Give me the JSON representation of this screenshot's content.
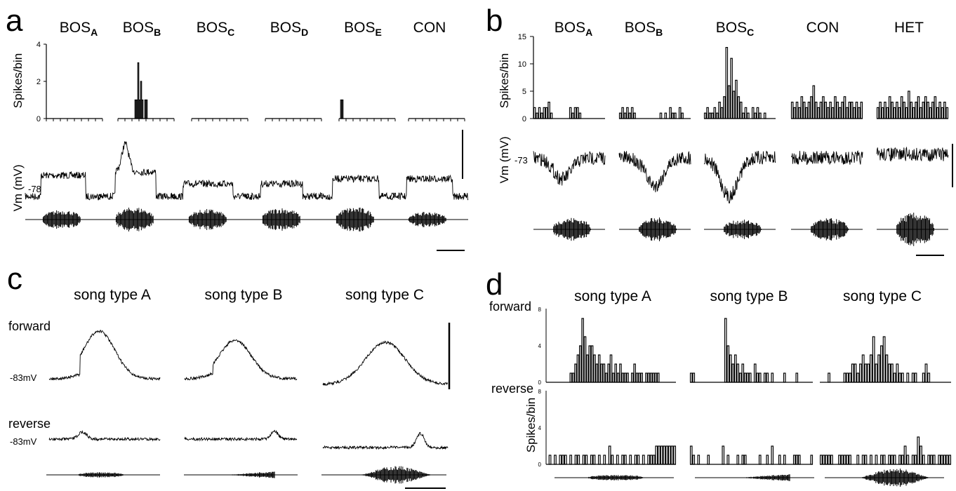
{
  "panels": [
    {
      "letter": "a",
      "columns": [
        {
          "base": "BOS",
          "sub": "A"
        },
        {
          "base": "BOS",
          "sub": "B"
        },
        {
          "base": "BOS",
          "sub": "C"
        },
        {
          "base": "BOS",
          "sub": "D"
        },
        {
          "base": "BOS",
          "sub": "E"
        },
        {
          "base": "CON",
          "sub": ""
        }
      ],
      "ylabel_hist": "Spikes/bin",
      "yticks_hist": [
        "0",
        "2",
        "4"
      ],
      "ylabel_trace": "Vm (mV)",
      "vm_value": "-78"
    },
    {
      "letter": "b",
      "columns": [
        {
          "base": "BOS",
          "sub": "A"
        },
        {
          "base": "BOS",
          "sub": "B"
        },
        {
          "base": "BOS",
          "sub": "C"
        },
        {
          "base": "CON",
          "sub": ""
        },
        {
          "base": "HET",
          "sub": ""
        }
      ],
      "ylabel_hist": "Spikes/bin",
      "yticks_hist": [
        "0",
        "5",
        "10",
        "15"
      ],
      "ylabel_trace": "Vm (mV)",
      "vm_value": "-73"
    },
    {
      "letter": "c",
      "columns": [
        "song type A",
        "song type B",
        "song type C"
      ],
      "row_forward": "forward",
      "row_reverse": "reverse",
      "vm_forward": "-83mV",
      "vm_reverse": "-83mV"
    },
    {
      "letter": "d",
      "columns": [
        "song type A",
        "song type B",
        "song type C"
      ],
      "row_forward": "forward",
      "row_reverse": "reverse",
      "ylabel": "Spikes/bin",
      "yticks": [
        "0",
        "4",
        "8"
      ]
    }
  ],
  "chart_data": [
    {
      "panel": "a",
      "type": "bar",
      "ylabel": "Spikes/bin",
      "ylim": [
        0,
        4
      ],
      "series": [
        {
          "values": [
            0,
            0,
            0,
            0,
            0,
            0,
            0,
            0,
            0,
            0,
            0,
            0,
            0,
            0,
            0,
            0,
            0,
            0,
            0,
            0,
            0,
            0,
            0,
            0,
            0,
            0,
            0,
            0,
            0,
            0,
            0,
            0,
            0,
            0,
            0,
            0,
            0,
            0,
            0,
            0
          ]
        },
        {
          "values": [
            0,
            0,
            0,
            0,
            0,
            0,
            0,
            0,
            0,
            0,
            0,
            0,
            1,
            1,
            3,
            1,
            2,
            1,
            0,
            1,
            1,
            0,
            0,
            0,
            0,
            0,
            0,
            0,
            0,
            0,
            0,
            0,
            0,
            0,
            0,
            0,
            0,
            0,
            0,
            0
          ]
        },
        {
          "values": [
            0,
            0,
            0,
            0,
            0,
            0,
            0,
            0,
            0,
            0,
            0,
            0,
            0,
            0,
            0,
            0,
            0,
            0,
            0,
            0,
            0,
            0,
            0,
            0,
            0,
            0,
            0,
            0,
            0,
            0,
            0,
            0,
            0,
            0,
            0,
            0,
            0,
            0,
            0,
            0
          ]
        },
        {
          "values": [
            0,
            0,
            0,
            0,
            0,
            0,
            0,
            0,
            0,
            0,
            0,
            0,
            0,
            0,
            0,
            0,
            0,
            0,
            0,
            0,
            0,
            0,
            0,
            0,
            0,
            0,
            0,
            0,
            0,
            0,
            0,
            0,
            0,
            0,
            0,
            0,
            0,
            0,
            0,
            0
          ]
        },
        {
          "values": [
            0,
            1,
            1,
            0,
            0,
            0,
            0,
            0,
            0,
            0,
            0,
            0,
            0,
            0,
            0,
            0,
            0,
            0,
            0,
            0,
            0,
            0,
            0,
            0,
            0,
            0,
            0,
            0,
            0,
            0,
            0,
            0,
            0,
            0,
            0,
            0,
            0,
            0,
            0,
            0
          ]
        },
        {
          "values": [
            0,
            0,
            0,
            0,
            0,
            0,
            0,
            0,
            0,
            0,
            0,
            0,
            0,
            0,
            0,
            0,
            0,
            0,
            0,
            0,
            0,
            0,
            0,
            0,
            0,
            0,
            0,
            0,
            0,
            0,
            0,
            0,
            0,
            0,
            0,
            0,
            0,
            0,
            0,
            0
          ]
        }
      ]
    },
    {
      "panel": "b",
      "type": "bar",
      "ylabel": "Spikes/bin",
      "ylim": [
        0,
        15
      ],
      "series": [
        {
          "values": [
            2,
            1,
            2,
            1,
            2,
            2,
            3,
            1,
            0,
            0,
            0,
            0,
            0,
            0,
            0,
            2,
            1,
            2,
            2,
            1,
            0,
            0,
            0,
            0,
            0,
            0,
            0,
            0,
            0,
            0
          ]
        },
        {
          "values": [
            1,
            2,
            1,
            2,
            1,
            2,
            1,
            0,
            0,
            0,
            0,
            0,
            0,
            0,
            0,
            0,
            0,
            1,
            0,
            1,
            0,
            2,
            1,
            1,
            0,
            2,
            1,
            0,
            0,
            0
          ]
        },
        {
          "values": [
            1,
            2,
            1,
            1,
            2,
            1,
            3,
            2,
            4,
            13,
            6,
            11,
            5,
            7,
            4,
            3,
            1,
            2,
            1,
            0,
            2,
            1,
            2,
            1,
            0,
            1,
            0,
            0,
            0,
            0
          ]
        },
        {
          "values": [
            3,
            2,
            3,
            2,
            4,
            3,
            2,
            3,
            4,
            6,
            3,
            2,
            3,
            4,
            3,
            2,
            3,
            2,
            4,
            3,
            2,
            3,
            4,
            2,
            3,
            3,
            2,
            3,
            2,
            3
          ]
        },
        {
          "values": [
            2,
            3,
            2,
            3,
            2,
            4,
            3,
            2,
            3,
            2,
            4,
            3,
            2,
            5,
            3,
            2,
            3,
            4,
            2,
            3,
            4,
            3,
            2,
            3,
            4,
            2,
            3,
            2,
            3,
            2
          ]
        }
      ]
    },
    {
      "panel": "d-forward",
      "type": "bar",
      "ylabel": "Spikes/bin",
      "ylim": [
        0,
        8
      ],
      "series": [
        {
          "values": [
            0,
            0,
            0,
            0,
            0,
            0,
            0,
            0,
            0,
            0,
            1,
            1,
            2,
            3,
            4,
            7,
            5,
            3,
            4,
            4,
            3,
            2,
            3,
            2,
            2,
            1,
            2,
            3,
            1,
            2,
            1,
            2,
            1,
            1,
            1,
            0,
            1,
            2,
            1,
            1,
            1,
            0,
            1,
            1,
            1,
            1,
            1,
            1,
            0,
            0,
            0,
            0,
            0,
            0,
            0
          ]
        },
        {
          "values": [
            1,
            1,
            0,
            0,
            0,
            0,
            0,
            0,
            0,
            0,
            0,
            0,
            0,
            0,
            7,
            4,
            3,
            2,
            3,
            2,
            1,
            2,
            1,
            1,
            1,
            0,
            2,
            1,
            1,
            0,
            1,
            1,
            0,
            1,
            0,
            0,
            0,
            0,
            1,
            0,
            0,
            0,
            0,
            1,
            0,
            0,
            0,
            0,
            0,
            0
          ]
        },
        {
          "values": [
            0,
            0,
            0,
            1,
            0,
            0,
            0,
            0,
            0,
            1,
            1,
            1,
            2,
            2,
            1,
            2,
            3,
            2,
            2,
            3,
            5,
            2,
            3,
            4,
            5,
            3,
            2,
            2,
            1,
            2,
            1,
            1,
            0,
            1,
            0,
            1,
            1,
            0,
            0,
            1,
            2,
            1,
            0,
            0,
            0,
            0,
            0,
            0,
            0,
            0
          ]
        }
      ]
    },
    {
      "panel": "d-reverse",
      "type": "bar",
      "ylabel": "Spikes/bin",
      "ylim": [
        0,
        8
      ],
      "series": [
        {
          "values": [
            0,
            1,
            0,
            1,
            0,
            1,
            1,
            1,
            0,
            1,
            0,
            1,
            1,
            0,
            1,
            1,
            0,
            1,
            1,
            0,
            1,
            0,
            1,
            0,
            2,
            1,
            0,
            1,
            0,
            1,
            1,
            0,
            1,
            0,
            1,
            1,
            0,
            1,
            0,
            1,
            1,
            1,
            2,
            2,
            2,
            2,
            2,
            2,
            2,
            2
          ]
        },
        {
          "values": [
            2,
            1,
            0,
            1,
            0,
            0,
            0,
            1,
            0,
            0,
            0,
            0,
            0,
            2,
            0,
            1,
            0,
            0,
            0,
            1,
            0,
            1,
            1,
            0,
            0,
            0,
            0,
            0,
            1,
            0,
            0,
            1,
            0,
            2,
            0,
            0,
            1,
            0,
            1,
            0,
            0,
            0,
            1,
            1,
            1,
            0,
            0,
            0,
            0,
            1
          ]
        },
        {
          "values": [
            1,
            1,
            1,
            1,
            1,
            0,
            0,
            1,
            1,
            1,
            1,
            1,
            0,
            0,
            1,
            0,
            1,
            1,
            0,
            1,
            0,
            1,
            0,
            1,
            1,
            0,
            1,
            1,
            1,
            0,
            1,
            1,
            2,
            1,
            0,
            1,
            1,
            3,
            2,
            1,
            0,
            1,
            1,
            1,
            0,
            1,
            1,
            1,
            1,
            1
          ]
        }
      ]
    }
  ]
}
